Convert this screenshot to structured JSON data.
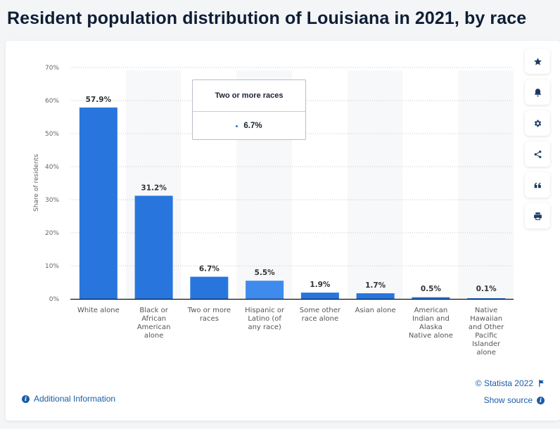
{
  "page": {
    "title": "Resident population distribution of Louisiana in 2021, by race"
  },
  "toolbar": {
    "items": [
      {
        "name": "favorite",
        "icon": "star-icon"
      },
      {
        "name": "notification",
        "icon": "bell-icon"
      },
      {
        "name": "settings",
        "icon": "gear-icon"
      },
      {
        "name": "share",
        "icon": "share-icon"
      },
      {
        "name": "cite",
        "icon": "quote-icon"
      },
      {
        "name": "print",
        "icon": "printer-icon"
      }
    ]
  },
  "tooltip": {
    "title": "Two or more races",
    "value": "6.7%"
  },
  "footer": {
    "additional_info": "Additional Information",
    "copyright": "© Statista 2022",
    "show_source": "Show source"
  },
  "colors": {
    "bar": "#2876dd",
    "bar_highlight": "#3f8bed",
    "band": "#f7f8f9",
    "grid": "#c8c8c8",
    "axis": "#111111"
  },
  "chart_data": {
    "type": "bar",
    "title": "Resident population distribution of Louisiana in 2021, by race",
    "xlabel": "",
    "ylabel": "Share of residents",
    "ylim": [
      0,
      70
    ],
    "yticks": [
      0,
      10,
      20,
      30,
      40,
      50,
      60,
      70
    ],
    "ytick_labels": [
      "0%",
      "10%",
      "20%",
      "30%",
      "40%",
      "50%",
      "60%",
      "70%"
    ],
    "grid": true,
    "categories": [
      "White alone",
      "Black or African American alone",
      "Two or more races",
      "Hispanic or Latino (of any race)",
      "Some other race alone",
      "Asian alone",
      "American Indian and Alaska Native alone",
      "Native Hawaiian and Other Pacific Islander alone"
    ],
    "category_lines": [
      [
        "White alone"
      ],
      [
        "Black or",
        "African",
        "American",
        "alone"
      ],
      [
        "Two or more",
        "races"
      ],
      [
        "Hispanic or",
        "Latino (of",
        "any race)"
      ],
      [
        "Some other",
        "race alone"
      ],
      [
        "Asian alone"
      ],
      [
        "American",
        "Indian and",
        "Alaska",
        "Native alone"
      ],
      [
        "Native",
        "Hawaiian",
        "and Other",
        "Pacific",
        "Islander",
        "alone"
      ]
    ],
    "values": [
      57.9,
      31.2,
      6.7,
      5.5,
      1.9,
      1.7,
      0.5,
      0.1
    ],
    "data_labels": [
      "57.9%",
      "31.2%",
      "6.7%",
      "5.5%",
      "1.9%",
      "1.7%",
      "0.5%",
      "0.1%"
    ],
    "highlighted_index": 3,
    "unit": "%"
  }
}
